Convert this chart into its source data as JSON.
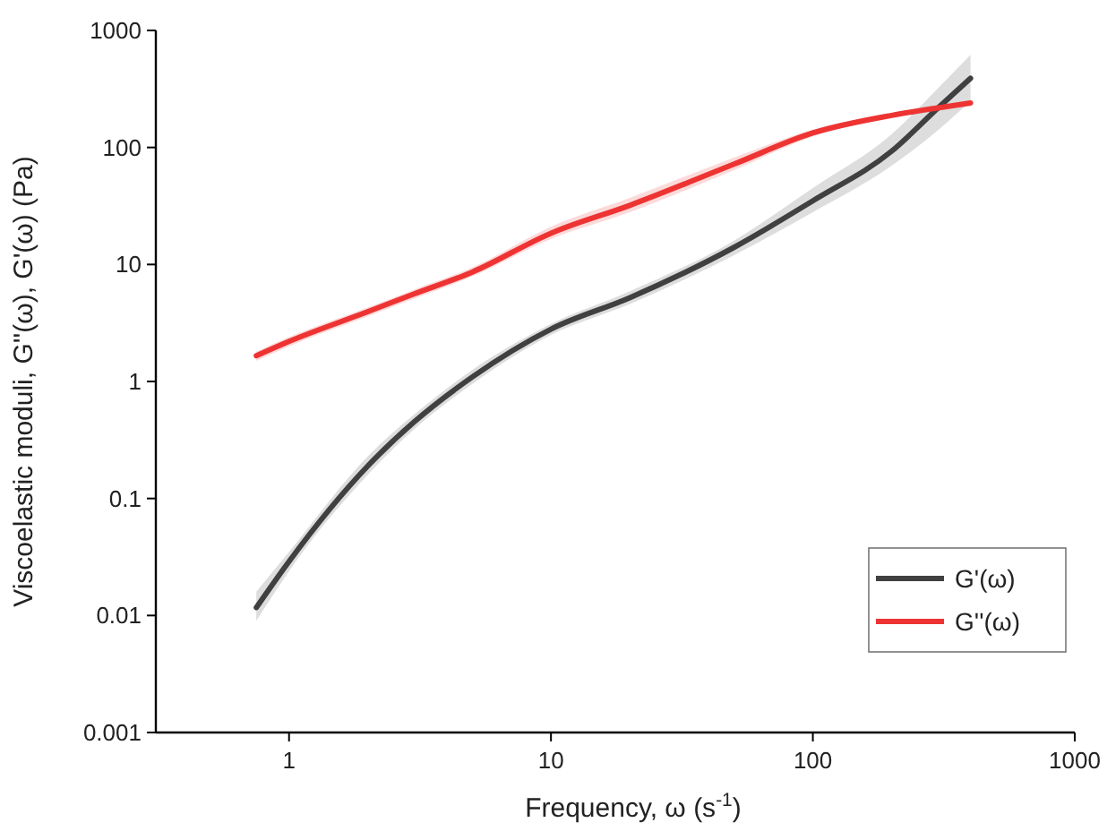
{
  "chart_data": {
    "type": "line",
    "xlabel": "Frequency, ω (s$^{-1}$)",
    "ylabel": "Viscoelastic moduli, G''(ω), G'(ω) (Pa)",
    "x": [
      0.75,
      1,
      2,
      3,
      5,
      10,
      20,
      50,
      100,
      200,
      300,
      400
    ],
    "series": [
      {
        "name": "G'(ω)",
        "color": "#404040",
        "values": [
          0.0117,
          0.029,
          0.19,
          0.45,
          1.09,
          2.8,
          5.2,
          14,
          35,
          93,
          217,
          390
        ],
        "lower": [
          0.009,
          0.024,
          0.16,
          0.39,
          0.95,
          2.5,
          4.6,
          12,
          28,
          70,
          140,
          250
        ],
        "upper": [
          0.016,
          0.035,
          0.23,
          0.52,
          1.25,
          3.1,
          5.9,
          16,
          45,
          130,
          320,
          620
        ]
      },
      {
        "name": "G''(ω)",
        "color": "#ee3333",
        "values": [
          1.66,
          2.2,
          3.95,
          5.6,
          8.6,
          18.5,
          32,
          72,
          133,
          188,
          218,
          240
        ],
        "lower": [
          1.5,
          2.0,
          3.6,
          5.1,
          7.9,
          16.5,
          28,
          64,
          124,
          180,
          210,
          232
        ],
        "upper": [
          1.8,
          2.4,
          4.3,
          6.1,
          9.4,
          21,
          37,
          82,
          142,
          196,
          226,
          248
        ]
      }
    ],
    "log": "xy",
    "xlim": [
      0.31,
      1000
    ],
    "xticks": [
      1,
      10,
      100,
      1000
    ],
    "ylim": [
      0.001,
      1000
    ],
    "yticks": [
      0.001,
      0.01,
      0.1,
      1,
      10,
      100,
      1000
    ],
    "grid": false,
    "legend": "bottom right",
    "marker": "none",
    "line_style": "solid"
  }
}
